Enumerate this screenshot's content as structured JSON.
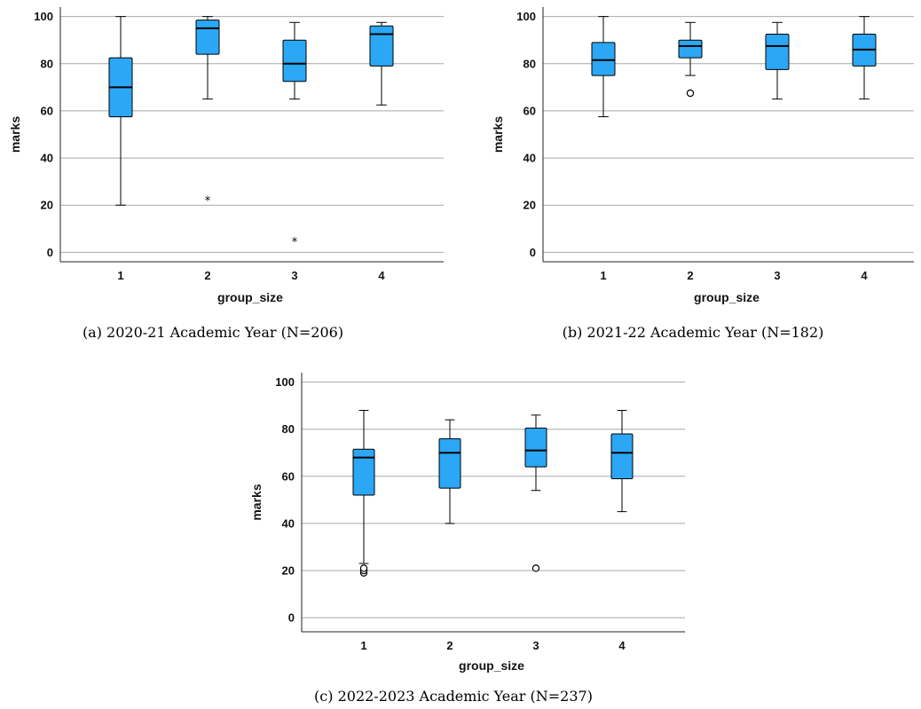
{
  "colors": {
    "box_fill": "#2BA7F5",
    "grid": "#a9a9a9"
  },
  "chart_data": [
    {
      "type": "box",
      "caption": "(a) 2020-21 Academic Year (N=206)",
      "xlabel": "group_size",
      "ylabel": "marks",
      "categories": [
        "1",
        "2",
        "3",
        "4"
      ],
      "y_ticks": [
        0,
        20,
        40,
        60,
        80,
        100
      ],
      "ylim": [
        -4,
        104
      ],
      "grid": true,
      "boxes": [
        {
          "category": "1",
          "min": 20,
          "q1": 57.5,
          "median": 70,
          "q3": 82.5,
          "max": 100,
          "outliers": [],
          "extremes": []
        },
        {
          "category": "2",
          "min": 65,
          "q1": 84,
          "median": 95,
          "q3": 98.5,
          "max": 100,
          "outliers": [],
          "extremes": [
            22.5
          ]
        },
        {
          "category": "3",
          "min": 65,
          "q1": 72.5,
          "median": 80,
          "q3": 90,
          "max": 97.5,
          "outliers": [],
          "extremes": [
            5
          ]
        },
        {
          "category": "4",
          "min": 62.5,
          "q1": 79,
          "median": 92.5,
          "q3": 96,
          "max": 97.5,
          "outliers": [],
          "extremes": []
        }
      ]
    },
    {
      "type": "box",
      "caption": "(b) 2021-22 Academic Year (N=182)",
      "xlabel": "group_size",
      "ylabel": "marks",
      "categories": [
        "1",
        "2",
        "3",
        "4"
      ],
      "y_ticks": [
        0,
        20,
        40,
        60,
        80,
        100
      ],
      "ylim": [
        -4,
        104
      ],
      "grid": true,
      "boxes": [
        {
          "category": "1",
          "min": 57.5,
          "q1": 75,
          "median": 81.5,
          "q3": 89,
          "max": 100,
          "outliers": [],
          "extremes": []
        },
        {
          "category": "2",
          "min": 75,
          "q1": 82.5,
          "median": 87.5,
          "q3": 90,
          "max": 97.5,
          "outliers": [
            67.5
          ],
          "extremes": []
        },
        {
          "category": "3",
          "min": 65,
          "q1": 77.5,
          "median": 87.5,
          "q3": 92.5,
          "max": 97.5,
          "outliers": [],
          "extremes": []
        },
        {
          "category": "4",
          "min": 65,
          "q1": 79,
          "median": 86,
          "q3": 92.5,
          "max": 100,
          "outliers": [],
          "extremes": []
        }
      ]
    },
    {
      "type": "box",
      "caption": "(c) 2022-2023 Academic Year (N=237)",
      "xlabel": "group_size",
      "ylabel": "marks",
      "categories": [
        "1",
        "2",
        "3",
        "4"
      ],
      "y_ticks": [
        0,
        20,
        40,
        60,
        80,
        100
      ],
      "ylim": [
        -6,
        104
      ],
      "grid": true,
      "boxes": [
        {
          "category": "1",
          "min": 23,
          "q1": 52,
          "median": 68,
          "q3": 71.5,
          "max": 88,
          "outliers": [
            19,
            20,
            21
          ],
          "extremes": []
        },
        {
          "category": "2",
          "min": 40,
          "q1": 55,
          "median": 70,
          "q3": 76,
          "max": 84,
          "outliers": [],
          "extremes": []
        },
        {
          "category": "3",
          "min": 54,
          "q1": 64,
          "median": 71,
          "q3": 80.5,
          "max": 86,
          "outliers": [
            21
          ],
          "extremes": []
        },
        {
          "category": "4",
          "min": 45,
          "q1": 59,
          "median": 70,
          "q3": 78,
          "max": 88,
          "outliers": [],
          "extremes": []
        }
      ]
    }
  ]
}
